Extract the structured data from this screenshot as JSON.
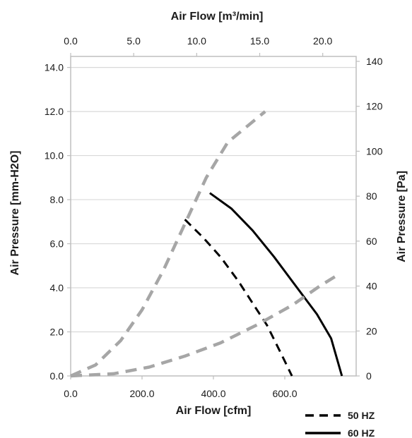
{
  "chart_data": {
    "type": "line",
    "top_axis": {
      "title": "Air Flow [m³/min]",
      "ticks": [
        "0.0",
        "5.0",
        "10.0",
        "15.0",
        "20.0"
      ],
      "tick_values": [
        0,
        5,
        10,
        15,
        20
      ]
    },
    "bottom_axis": {
      "title": "Air Flow [cfm]",
      "ticks": [
        "0.0",
        "200.0",
        "400.0",
        "600.0"
      ],
      "tick_values": [
        0,
        200,
        400,
        600
      ],
      "range": [
        0,
        800
      ]
    },
    "left_axis": {
      "title": "Air Pressure [mm-H2O]",
      "ticks": [
        "0.0",
        "2.0",
        "4.0",
        "6.0",
        "8.0",
        "10.0",
        "12.0",
        "14.0"
      ],
      "tick_values": [
        0,
        2,
        4,
        6,
        8,
        10,
        12,
        14
      ],
      "range": [
        0,
        14.5
      ]
    },
    "right_axis": {
      "title": "Air Pressure [Pa]",
      "ticks": [
        "0",
        "20",
        "40",
        "60",
        "80",
        "100",
        "120",
        "140"
      ],
      "tick_values": [
        0,
        20,
        40,
        60,
        80,
        100,
        120,
        140
      ]
    },
    "grid": "horizontal",
    "legend": {
      "placement": "bottom-right",
      "items": [
        {
          "label": "50 HZ",
          "style": "dashed",
          "color": "#000000"
        },
        {
          "label": "60 HZ",
          "style": "solid",
          "color": "#000000"
        }
      ]
    },
    "series": [
      {
        "style": "dashed",
        "color": "#000000",
        "points": [
          [
            320,
            7.1
          ],
          [
            370,
            6.3
          ],
          [
            420,
            5.4
          ],
          [
            470,
            4.3
          ],
          [
            510,
            3.3
          ],
          [
            550,
            2.3
          ],
          [
            590,
            1.0
          ],
          [
            620,
            0
          ]
        ]
      },
      {
        "style": "solid",
        "color": "#000000",
        "points": [
          [
            390,
            8.3
          ],
          [
            450,
            7.6
          ],
          [
            510,
            6.6
          ],
          [
            570,
            5.4
          ],
          [
            630,
            4.1
          ],
          [
            690,
            2.8
          ],
          [
            730,
            1.7
          ],
          [
            760,
            0
          ]
        ]
      },
      {
        "style": "dashed",
        "color": "#a6a6a6",
        "points": [
          [
            0,
            0
          ],
          [
            70,
            0.5
          ],
          [
            140,
            1.6
          ],
          [
            200,
            3.0
          ],
          [
            260,
            4.8
          ],
          [
            320,
            6.9
          ],
          [
            380,
            9.0
          ],
          [
            440,
            10.6
          ],
          [
            500,
            11.4
          ],
          [
            545,
            12.0
          ]
        ]
      },
      {
        "style": "dashed",
        "color": "#a6a6a6",
        "points": [
          [
            0,
            0
          ],
          [
            120,
            0.1
          ],
          [
            220,
            0.4
          ],
          [
            320,
            0.9
          ],
          [
            420,
            1.5
          ],
          [
            520,
            2.3
          ],
          [
            620,
            3.2
          ],
          [
            700,
            4.1
          ],
          [
            750,
            4.6
          ]
        ]
      }
    ]
  }
}
